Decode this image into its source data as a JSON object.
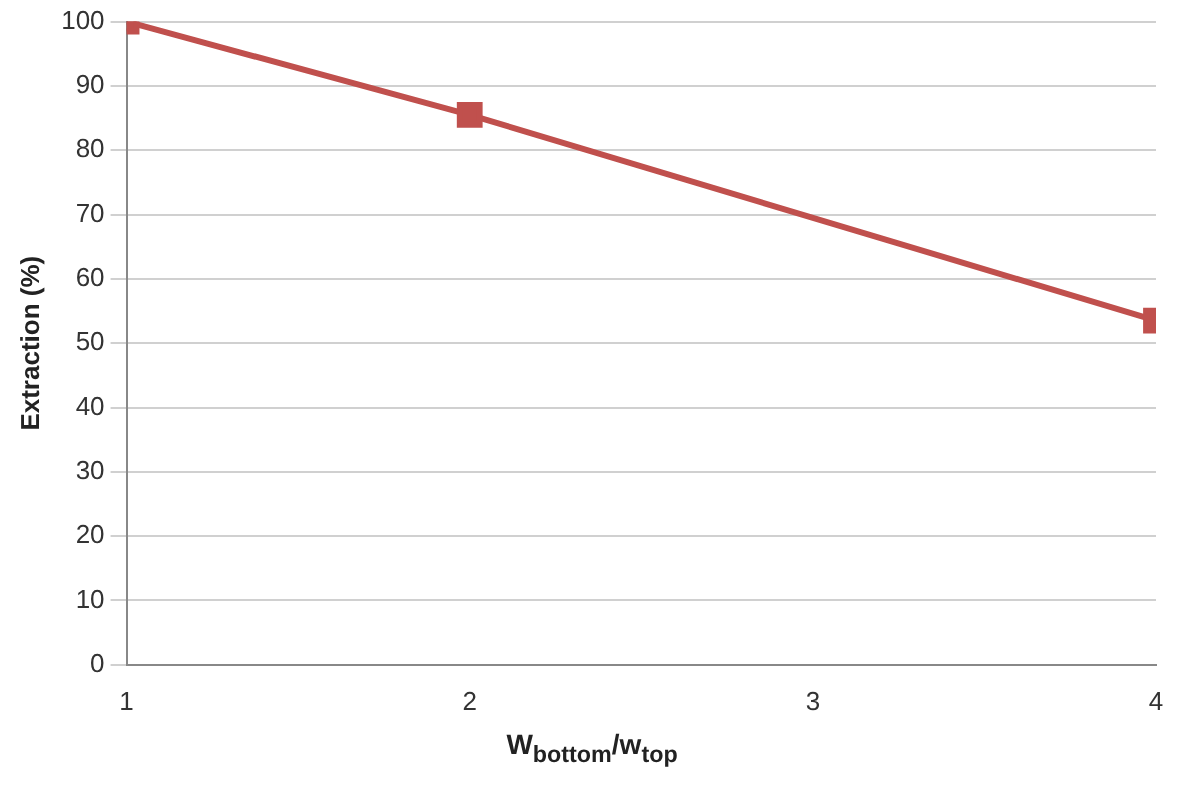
{
  "chart_data": {
    "type": "line",
    "xlabel": "W$_{bottom}$/w$_{top}$",
    "ylabel": "Extraction (%)",
    "x": [
      1,
      2,
      4
    ],
    "series": [
      {
        "color": "#c0504d",
        "values": [
          100,
          85.5,
          53.5
        ]
      }
    ],
    "xlim": [
      1,
      4
    ],
    "xticks": [
      1,
      2,
      3,
      4
    ],
    "ylim": [
      0,
      100
    ],
    "yticks": [
      0,
      10,
      20,
      30,
      40,
      50,
      60,
      70,
      80,
      90,
      100
    ],
    "grid": "y",
    "marker": "square",
    "line_style": "solid",
    "legend": false
  }
}
